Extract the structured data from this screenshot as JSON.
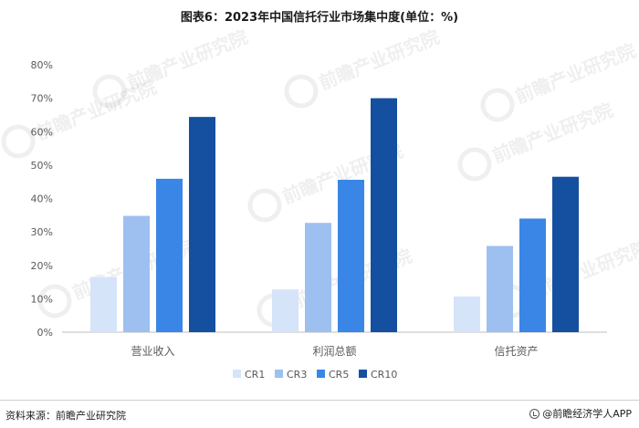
{
  "title": "图表6：2023年中国信托行业市场集中度(单位：%)",
  "source": "资料来源：前瞻产业研究院",
  "brand": "@前瞻经济学人APP",
  "watermark": {
    "main": "前瞻产业研究院"
  },
  "colors": {
    "CR1": "#d6e4fa",
    "CR3": "#9dc0f0",
    "CR5": "#3a86e6",
    "CR10": "#154fa0"
  },
  "chart_data": {
    "type": "bar",
    "title": "图表6：2023年中国信托行业市场集中度(单位：%)",
    "xlabel": "",
    "ylabel": "",
    "ylim": [
      0,
      80
    ],
    "yticks": [
      "0%",
      "10%",
      "20%",
      "30%",
      "40%",
      "50%",
      "60%",
      "70%",
      "80%"
    ],
    "categories": [
      "营业收入",
      "利润总额",
      "信托资产"
    ],
    "series": [
      {
        "name": "CR1",
        "values": [
          16.5,
          12.8,
          10.7
        ]
      },
      {
        "name": "CR3",
        "values": [
          34.8,
          32.7,
          25.8
        ]
      },
      {
        "name": "CR5",
        "values": [
          45.9,
          45.6,
          34.0
        ]
      },
      {
        "name": "CR10",
        "values": [
          64.4,
          70.0,
          46.5
        ]
      }
    ],
    "legend": "bottom-center",
    "grid": false
  }
}
